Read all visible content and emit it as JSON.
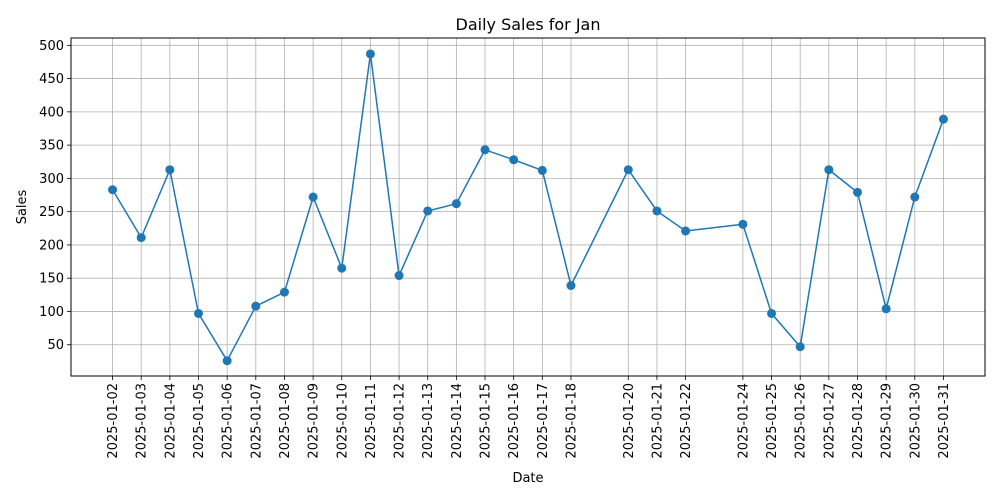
{
  "chart_data": {
    "type": "line",
    "title": "Daily Sales for Jan",
    "xlabel": "Date",
    "ylabel": "Sales",
    "ylim": [
      3,
      511
    ],
    "yticks": [
      50,
      100,
      150,
      200,
      250,
      300,
      350,
      400,
      450,
      500
    ],
    "grid": true,
    "marker": "circle",
    "color": "#1f77b4",
    "series": [
      {
        "points": [
          {
            "x": "2025-01-02",
            "y": 283
          },
          {
            "x": "2025-01-03",
            "y": 211
          },
          {
            "x": "2025-01-04",
            "y": 313
          },
          {
            "x": "2025-01-05",
            "y": 97
          },
          {
            "x": "2025-01-06",
            "y": 26
          },
          {
            "x": "2025-01-07",
            "y": 108
          },
          {
            "x": "2025-01-08",
            "y": 129
          },
          {
            "x": "2025-01-09",
            "y": 272
          },
          {
            "x": "2025-01-10",
            "y": 165
          },
          {
            "x": "2025-01-11",
            "y": 487
          },
          {
            "x": "2025-01-12",
            "y": 154
          },
          {
            "x": "2025-01-13",
            "y": 251
          },
          {
            "x": "2025-01-14",
            "y": 262
          },
          {
            "x": "2025-01-15",
            "y": 343
          },
          {
            "x": "2025-01-16",
            "y": 328
          },
          {
            "x": "2025-01-17",
            "y": 312
          },
          {
            "x": "2025-01-18",
            "y": 139
          },
          {
            "x": "2025-01-20",
            "y": 313
          },
          {
            "x": "2025-01-21",
            "y": 251
          },
          {
            "x": "2025-01-22",
            "y": 221
          },
          {
            "x": "2025-01-24",
            "y": 231
          },
          {
            "x": "2025-01-25",
            "y": 97
          },
          {
            "x": "2025-01-26",
            "y": 47
          },
          {
            "x": "2025-01-27",
            "y": 313
          },
          {
            "x": "2025-01-28",
            "y": 279
          },
          {
            "x": "2025-01-29",
            "y": 104
          },
          {
            "x": "2025-01-30",
            "y": 272
          },
          {
            "x": "2025-01-31",
            "y": 389
          }
        ]
      }
    ]
  }
}
